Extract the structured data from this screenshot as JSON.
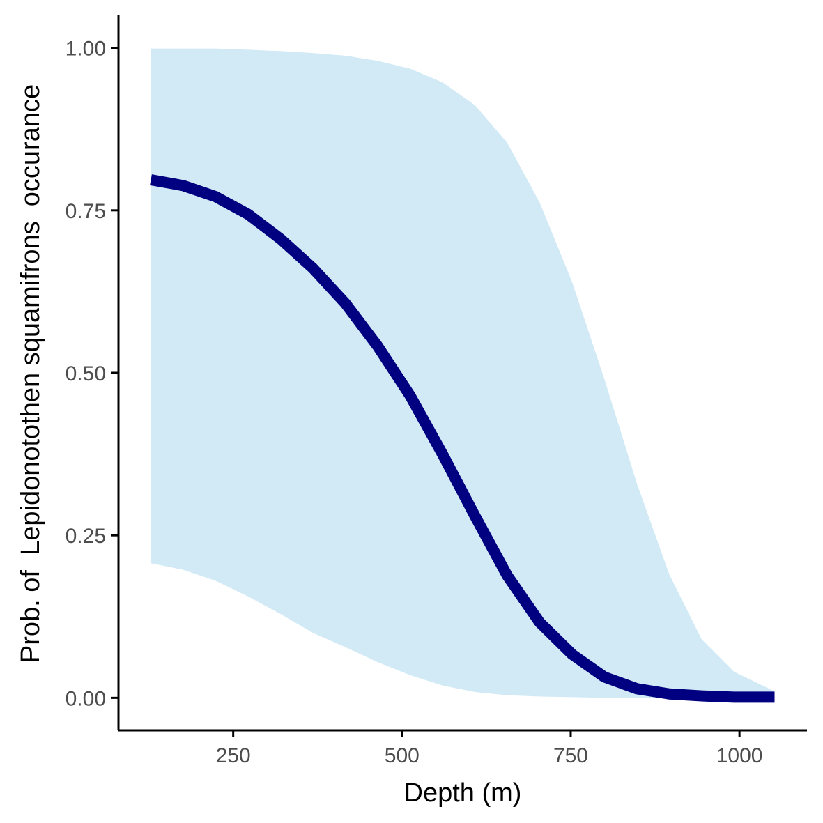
{
  "chart_data": {
    "type": "line",
    "title": "",
    "xlabel": "Depth (m)",
    "ylabel": "Prob. of  Lepidonotothen squamifrons  occurance",
    "xlim": [
      80,
      1100
    ],
    "ylim": [
      -0.05,
      1.05
    ],
    "x_ticks": [
      250,
      500,
      750,
      1000
    ],
    "x_tick_labels": [
      "250",
      "500",
      "750",
      "1000"
    ],
    "y_ticks": [
      0,
      0.25,
      0.5,
      0.75,
      1
    ],
    "y_tick_labels": [
      "0.00",
      "0.25",
      "0.50",
      "0.75",
      "1.00"
    ],
    "grid": false,
    "legend": "none",
    "colors": {
      "line": "#000080",
      "band": "#d2eaf6",
      "axis": "#000000"
    },
    "series": [
      {
        "x": [
          128,
          176,
          224,
          272,
          320,
          368,
          416,
          464,
          512,
          560,
          608,
          656,
          704,
          752,
          800,
          848,
          896,
          944,
          992,
          1052
        ],
        "y": [
          0.797,
          0.788,
          0.771,
          0.744,
          0.706,
          0.661,
          0.607,
          0.541,
          0.465,
          0.375,
          0.28,
          0.188,
          0.116,
          0.067,
          0.032,
          0.014,
          0.006,
          0.003,
          0.001,
          0.001
        ],
        "lower": [
          0.207,
          0.197,
          0.18,
          0.156,
          0.129,
          0.1,
          0.078,
          0.055,
          0.035,
          0.019,
          0.009,
          0.004,
          0.002,
          0.001,
          0.0,
          0.0,
          0.0,
          0.0,
          0.0,
          0.0
        ],
        "upper": [
          0.999,
          0.999,
          0.999,
          0.997,
          0.995,
          0.992,
          0.988,
          0.98,
          0.968,
          0.947,
          0.912,
          0.854,
          0.762,
          0.64,
          0.49,
          0.33,
          0.19,
          0.09,
          0.04,
          0.01
        ]
      }
    ]
  }
}
